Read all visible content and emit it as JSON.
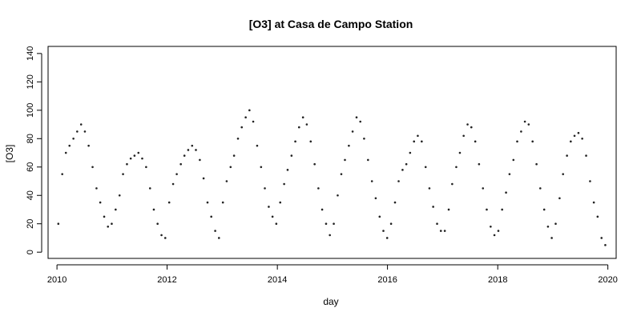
{
  "chart_data": {
    "type": "scatter",
    "title": "[O3] at Casa de Campo Station",
    "xlabel": "day",
    "ylabel": "[O3]",
    "xlim": [
      "2009-11-03",
      "2020-02-25"
    ],
    "ylim": [
      -4.4,
      145
    ],
    "x_ticks": [
      {
        "label": "2010",
        "date": "2010-01-01"
      },
      {
        "label": "2012",
        "date": "2012-01-01"
      },
      {
        "label": "2014",
        "date": "2014-01-01"
      },
      {
        "label": "2016",
        "date": "2016-01-01"
      },
      {
        "label": "2018",
        "date": "2018-01-01"
      },
      {
        "label": "2020",
        "date": "2020-01-01"
      }
    ],
    "y_ticks": [
      0,
      20,
      40,
      60,
      80,
      100,
      120,
      140
    ],
    "grid": false,
    "legend": "none",
    "marker_color": "#222222",
    "series": [
      {
        "x": [
          "2010-01-10",
          "2010-02-05",
          "2010-03-01",
          "2010-03-25",
          "2010-04-20",
          "2010-05-15",
          "2010-06-10",
          "2010-07-05",
          "2010-07-30",
          "2010-08-25",
          "2010-09-20",
          "2010-10-15",
          "2010-11-10",
          "2010-12-05",
          "2010-12-30",
          "2011-01-25",
          "2011-02-20",
          "2011-03-15",
          "2011-04-10",
          "2011-05-05",
          "2011-05-30",
          "2011-06-25",
          "2011-07-20",
          "2011-08-15",
          "2011-09-10",
          "2011-10-05",
          "2011-10-30",
          "2011-11-25",
          "2011-12-20",
          "2012-01-15",
          "2012-02-10",
          "2012-03-05",
          "2012-04-01",
          "2012-04-25",
          "2012-05-20",
          "2012-06-15",
          "2012-07-10",
          "2012-08-05",
          "2012-08-30",
          "2012-09-25",
          "2012-10-20",
          "2012-11-15",
          "2012-12-10",
          "2013-01-05",
          "2013-01-30",
          "2013-02-25",
          "2013-03-20",
          "2013-04-15",
          "2013-05-10",
          "2013-06-05",
          "2013-06-30",
          "2013-07-25",
          "2013-08-20",
          "2013-09-15",
          "2013-10-10",
          "2013-11-05",
          "2013-11-30",
          "2013-12-25",
          "2014-01-20",
          "2014-02-15",
          "2014-03-10",
          "2014-04-05",
          "2014-04-30",
          "2014-05-25",
          "2014-06-20",
          "2014-07-15",
          "2014-08-10",
          "2014-09-05",
          "2014-09-30",
          "2014-10-25",
          "2014-11-20",
          "2014-12-15",
          "2015-01-10",
          "2015-02-05",
          "2015-03-01",
          "2015-03-25",
          "2015-04-20",
          "2015-05-15",
          "2015-06-10",
          "2015-07-05",
          "2015-07-30",
          "2015-08-25",
          "2015-09-20",
          "2015-10-15",
          "2015-11-10",
          "2015-12-05",
          "2015-12-30",
          "2016-01-25",
          "2016-02-20",
          "2016-03-15",
          "2016-04-10",
          "2016-05-05",
          "2016-05-30",
          "2016-06-25",
          "2016-07-20",
          "2016-08-15",
          "2016-09-10",
          "2016-10-05",
          "2016-10-30",
          "2016-11-25",
          "2016-12-20",
          "2017-01-15",
          "2017-02-10",
          "2017-03-05",
          "2017-04-01",
          "2017-04-25",
          "2017-05-20",
          "2017-06-15",
          "2017-07-10",
          "2017-08-05",
          "2017-08-30",
          "2017-09-25",
          "2017-10-20",
          "2017-11-15",
          "2017-12-10",
          "2018-01-05",
          "2018-01-30",
          "2018-02-25",
          "2018-03-20",
          "2018-04-15",
          "2018-05-10",
          "2018-06-05",
          "2018-06-30",
          "2018-07-25",
          "2018-08-20",
          "2018-09-15",
          "2018-10-10",
          "2018-11-05",
          "2018-11-30",
          "2018-12-25",
          "2019-01-20",
          "2019-02-15",
          "2019-03-10",
          "2019-04-05",
          "2019-04-30",
          "2019-05-25",
          "2019-06-20",
          "2019-07-15",
          "2019-08-10",
          "2019-09-05",
          "2019-09-30",
          "2019-10-25",
          "2019-11-20",
          "2019-12-15"
        ],
        "y": [
          20,
          55,
          70,
          75,
          80,
          85,
          90,
          85,
          75,
          60,
          45,
          35,
          25,
          18,
          20,
          30,
          40,
          55,
          62,
          66,
          68,
          70,
          66,
          60,
          45,
          30,
          20,
          12,
          10,
          35,
          48,
          55,
          62,
          68,
          72,
          75,
          72,
          65,
          52,
          35,
          25,
          15,
          10,
          35,
          50,
          60,
          68,
          80,
          88,
          95,
          100,
          92,
          75,
          60,
          45,
          32,
          25,
          20,
          35,
          48,
          58,
          68,
          78,
          88,
          95,
          90,
          78,
          62,
          45,
          30,
          20,
          12,
          20,
          40,
          55,
          65,
          75,
          85,
          95,
          92,
          80,
          65,
          50,
          38,
          25,
          15,
          10,
          20,
          35,
          50,
          58,
          62,
          70,
          78,
          82,
          78,
          60,
          45,
          32,
          20,
          15,
          15,
          30,
          48,
          60,
          70,
          82,
          90,
          88,
          78,
          62,
          45,
          30,
          18,
          12,
          15,
          30,
          42,
          55,
          65,
          78,
          85,
          92,
          90,
          78,
          62,
          45,
          30,
          18,
          10,
          20,
          38,
          55,
          68,
          78,
          82,
          84,
          80,
          68,
          50,
          35,
          25,
          10,
          5
        ]
      }
    ]
  }
}
